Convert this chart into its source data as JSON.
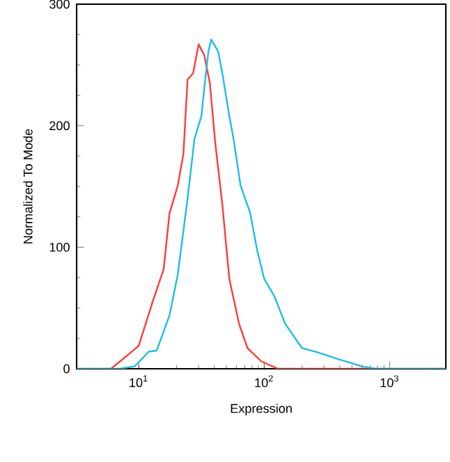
{
  "chart_data": {
    "type": "line",
    "xlabel": "Expression",
    "ylabel": "Normalized To Mode",
    "log": "x",
    "xlim": [
      3.2,
      2800
    ],
    "ylim": [
      0,
      300
    ],
    "xticks": [
      {
        "value": 10,
        "label": "10$^{1}$"
      },
      {
        "value": 100,
        "label": "10$^{2}$"
      },
      {
        "value": 1000,
        "label": "10$^{3}$"
      }
    ],
    "yticks": [
      0,
      100,
      200,
      300
    ],
    "grid": false,
    "marker": "none",
    "line_style": "solid",
    "series": [
      {
        "color": "#ff3b3b",
        "x": [
          3.2,
          6.0,
          7.7,
          10,
          12.9,
          15.8,
          17.6,
          20.5,
          22.7,
          24.5,
          27.1,
          30.0,
          33.3,
          36.9,
          40.8,
          46.4,
          52.7,
          63,
          73.6,
          95,
          129,
          2800
        ],
        "values": [
          0,
          0,
          9,
          19,
          55,
          82,
          128,
          151,
          177,
          238,
          243,
          267,
          258,
          235,
          185,
          135,
          74,
          37,
          17,
          6,
          0,
          0
        ]
      },
      {
        "color": "#1ebde8",
        "x": [
          3.2,
          7,
          9.3,
          12,
          13.9,
          17.6,
          20.5,
          24.5,
          27.8,
          31.6,
          33.3,
          35.9,
          37.8,
          43,
          46.4,
          52.7,
          57,
          64.7,
          77.4,
          88,
          100,
          120,
          147,
          200,
          258,
          388,
          600,
          774,
          2800
        ],
        "values": [
          0,
          0,
          2,
          14,
          15,
          44,
          78,
          140,
          189,
          208,
          231,
          261,
          271,
          261,
          243,
          208,
          189,
          151,
          128,
          97,
          74,
          60,
          37,
          17,
          14,
          8,
          2,
          0,
          0
        ]
      }
    ]
  }
}
